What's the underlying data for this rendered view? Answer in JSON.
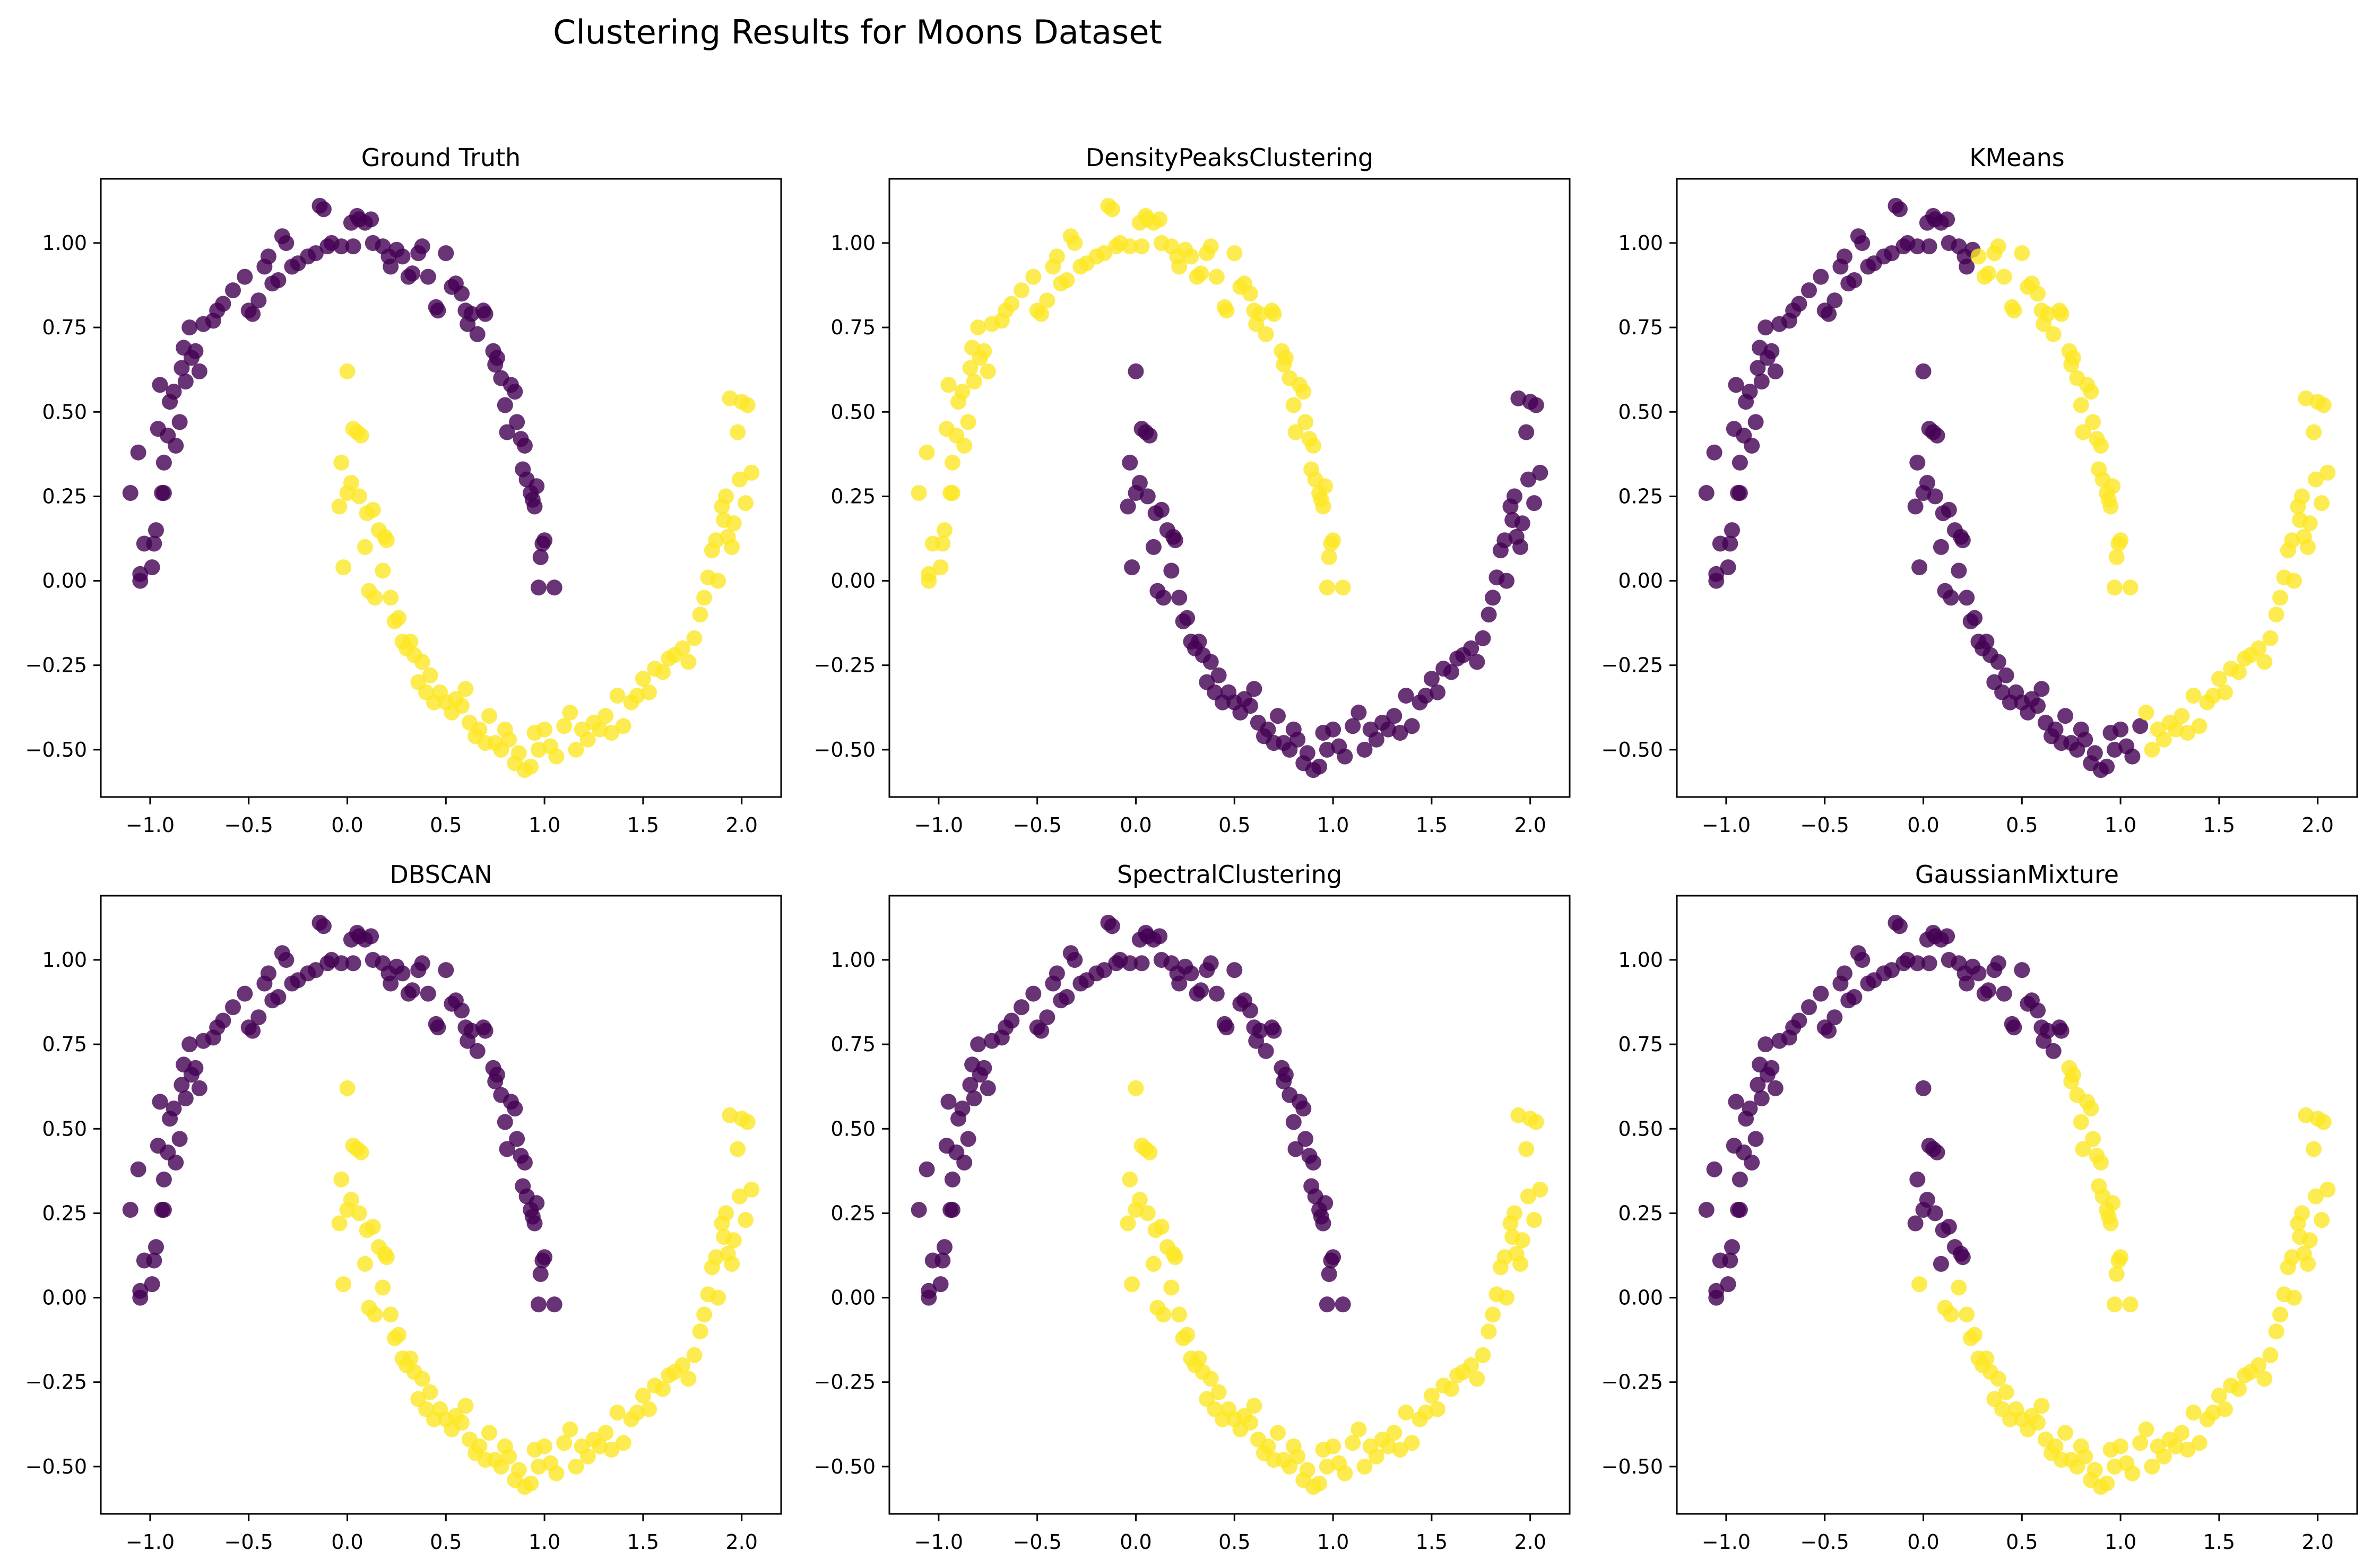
{
  "figure": {
    "suptitle": "Clustering Results for Moons Dataset"
  },
  "style": {
    "cluster_colors": {
      "0": "#440154",
      "1": "#fde725"
    },
    "point_alpha": 0.8,
    "axes_color": "#000000",
    "background": "#ffffff"
  },
  "chart_data": [
    {
      "type": "scatter",
      "title": "Ground Truth",
      "xlim": [
        -1.25,
        2.2
      ],
      "ylim": [
        -0.64,
        1.19
      ],
      "xticks": [
        -1.0,
        -0.5,
        0.0,
        0.5,
        1.0,
        1.5,
        2.0
      ],
      "xtick_labels": [
        "−1.0",
        "−0.5",
        "0.0",
        "0.5",
        "1.0",
        "1.5",
        "2.0"
      ],
      "yticks": [
        -0.5,
        -0.25,
        0.0,
        0.25,
        0.5,
        0.75,
        1.0
      ],
      "ytick_labels": [
        "−0.50",
        "−0.25",
        "0.00",
        "0.25",
        "0.50",
        "0.75",
        "1.00"
      ],
      "grid": false,
      "rule": "true_moon"
    },
    {
      "type": "scatter",
      "title": "DensityPeaksClustering",
      "xlim": [
        -1.25,
        2.2
      ],
      "ylim": [
        -0.64,
        1.19
      ],
      "xticks": [
        -1.0,
        -0.5,
        0.0,
        0.5,
        1.0,
        1.5,
        2.0
      ],
      "xtick_labels": [
        "−1.0",
        "−0.5",
        "0.0",
        "0.5",
        "1.0",
        "1.5",
        "2.0"
      ],
      "yticks": [
        -0.5,
        -0.25,
        0.0,
        0.25,
        0.5,
        0.75,
        1.0
      ],
      "ytick_labels": [
        "−0.50",
        "−0.25",
        "0.00",
        "0.25",
        "0.50",
        "0.75",
        "1.00"
      ],
      "grid": false,
      "rule": "inverted_moon"
    },
    {
      "type": "scatter",
      "title": "KMeans",
      "xlim": [
        -1.25,
        2.2
      ],
      "ylim": [
        -0.64,
        1.19
      ],
      "xticks": [
        -1.0,
        -0.5,
        0.0,
        0.5,
        1.0,
        1.5,
        2.0
      ],
      "xtick_labels": [
        "−1.0",
        "−0.5",
        "0.0",
        "0.5",
        "1.0",
        "1.5",
        "2.0"
      ],
      "yticks": [
        -0.5,
        -0.25,
        0.0,
        0.25,
        0.5,
        0.75,
        1.0
      ],
      "ytick_labels": [
        "−0.50",
        "−0.25",
        "0.00",
        "0.25",
        "0.50",
        "0.75",
        "1.00"
      ],
      "grid": false,
      "rule": "kmeans_split"
    },
    {
      "type": "scatter",
      "title": "DBSCAN",
      "xlim": [
        -1.25,
        2.2
      ],
      "ylim": [
        -0.64,
        1.19
      ],
      "xticks": [
        -1.0,
        -0.5,
        0.0,
        0.5,
        1.0,
        1.5,
        2.0
      ],
      "xtick_labels": [
        "−1.0",
        "−0.5",
        "0.0",
        "0.5",
        "1.0",
        "1.5",
        "2.0"
      ],
      "yticks": [
        -0.5,
        -0.25,
        0.0,
        0.25,
        0.5,
        0.75,
        1.0
      ],
      "ytick_labels": [
        "−0.50",
        "−0.25",
        "0.00",
        "0.25",
        "0.50",
        "0.75",
        "1.00"
      ],
      "grid": false,
      "rule": "true_moon"
    },
    {
      "type": "scatter",
      "title": "SpectralClustering",
      "xlim": [
        -1.25,
        2.2
      ],
      "ylim": [
        -0.64,
        1.19
      ],
      "xticks": [
        -1.0,
        -0.5,
        0.0,
        0.5,
        1.0,
        1.5,
        2.0
      ],
      "xtick_labels": [
        "−1.0",
        "−0.5",
        "0.0",
        "0.5",
        "1.0",
        "1.5",
        "2.0"
      ],
      "yticks": [
        -0.5,
        -0.25,
        0.0,
        0.25,
        0.5,
        0.75,
        1.0
      ],
      "ytick_labels": [
        "−0.50",
        "−0.25",
        "0.00",
        "0.25",
        "0.50",
        "0.75",
        "1.00"
      ],
      "grid": false,
      "rule": "true_moon"
    },
    {
      "type": "scatter",
      "title": "GaussianMixture",
      "xlim": [
        -1.25,
        2.2
      ],
      "ylim": [
        -0.64,
        1.19
      ],
      "xticks": [
        -1.0,
        -0.5,
        0.0,
        0.5,
        1.0,
        1.5,
        2.0
      ],
      "xtick_labels": [
        "−1.0",
        "−0.5",
        "0.0",
        "0.5",
        "1.0",
        "1.5",
        "2.0"
      ],
      "yticks": [
        -0.5,
        -0.25,
        0.0,
        0.25,
        0.5,
        0.75,
        1.0
      ],
      "ytick_labels": [
        "−0.50",
        "−0.25",
        "0.00",
        "0.25",
        "0.50",
        "0.75",
        "1.00"
      ],
      "grid": false,
      "rule": "gmm_split"
    }
  ],
  "points": {
    "upper_moon": [
      [
        -1.1,
        0.26
      ],
      [
        -1.06,
        0.38
      ],
      [
        -1.05,
        0.0
      ],
      [
        -1.05,
        0.02
      ],
      [
        -1.03,
        0.11
      ],
      [
        -0.99,
        0.04
      ],
      [
        -0.98,
        0.11
      ],
      [
        -0.97,
        0.15
      ],
      [
        -0.96,
        0.45
      ],
      [
        -0.95,
        0.58
      ],
      [
        -0.94,
        0.26
      ],
      [
        -0.93,
        0.26
      ],
      [
        -0.93,
        0.35
      ],
      [
        -0.91,
        0.43
      ],
      [
        -0.9,
        0.53
      ],
      [
        -0.88,
        0.56
      ],
      [
        -0.87,
        0.4
      ],
      [
        -0.85,
        0.47
      ],
      [
        -0.84,
        0.63
      ],
      [
        -0.83,
        0.69
      ],
      [
        -0.82,
        0.59
      ],
      [
        -0.8,
        0.75
      ],
      [
        -0.79,
        0.66
      ],
      [
        -0.77,
        0.68
      ],
      [
        -0.75,
        0.62
      ],
      [
        -0.73,
        0.76
      ],
      [
        -0.68,
        0.77
      ],
      [
        -0.66,
        0.8
      ],
      [
        -0.63,
        0.82
      ],
      [
        -0.58,
        0.86
      ],
      [
        -0.52,
        0.9
      ],
      [
        -0.5,
        0.8
      ],
      [
        -0.48,
        0.79
      ],
      [
        -0.45,
        0.83
      ],
      [
        -0.42,
        0.93
      ],
      [
        -0.4,
        0.96
      ],
      [
        -0.38,
        0.88
      ],
      [
        -0.35,
        0.89
      ],
      [
        -0.33,
        1.02
      ],
      [
        -0.31,
        1.0
      ],
      [
        -0.28,
        0.93
      ],
      [
        -0.25,
        0.94
      ],
      [
        -0.2,
        0.96
      ],
      [
        -0.16,
        0.97
      ],
      [
        -0.14,
        1.11
      ],
      [
        -0.12,
        1.1
      ],
      [
        -0.1,
        0.99
      ],
      [
        -0.08,
        1.0
      ],
      [
        -0.03,
        0.99
      ],
      [
        0.02,
        1.06
      ],
      [
        0.03,
        0.99
      ],
      [
        0.05,
        1.08
      ],
      [
        0.06,
        1.07
      ],
      [
        0.09,
        1.06
      ],
      [
        0.12,
        1.07
      ],
      [
        0.13,
        1.0
      ],
      [
        0.18,
        0.99
      ],
      [
        0.21,
        0.96
      ],
      [
        0.22,
        0.93
      ],
      [
        0.25,
        0.98
      ],
      [
        0.28,
        0.96
      ],
      [
        0.31,
        0.9
      ],
      [
        0.33,
        0.91
      ],
      [
        0.36,
        0.97
      ],
      [
        0.38,
        0.99
      ],
      [
        0.41,
        0.9
      ],
      [
        0.45,
        0.81
      ],
      [
        0.46,
        0.8
      ],
      [
        0.5,
        0.97
      ],
      [
        0.53,
        0.87
      ],
      [
        0.55,
        0.88
      ],
      [
        0.58,
        0.85
      ],
      [
        0.6,
        0.8
      ],
      [
        0.61,
        0.76
      ],
      [
        0.63,
        0.79
      ],
      [
        0.66,
        0.73
      ],
      [
        0.69,
        0.8
      ],
      [
        0.7,
        0.79
      ],
      [
        0.74,
        0.68
      ],
      [
        0.75,
        0.64
      ],
      [
        0.76,
        0.66
      ],
      [
        0.78,
        0.6
      ],
      [
        0.8,
        0.52
      ],
      [
        0.81,
        0.44
      ],
      [
        0.83,
        0.58
      ],
      [
        0.85,
        0.56
      ],
      [
        0.86,
        0.47
      ],
      [
        0.88,
        0.42
      ],
      [
        0.89,
        0.33
      ],
      [
        0.9,
        0.4
      ],
      [
        0.91,
        0.3
      ],
      [
        0.93,
        0.26
      ],
      [
        0.94,
        0.24
      ],
      [
        0.95,
        0.22
      ],
      [
        0.96,
        0.28
      ],
      [
        0.98,
        0.07
      ],
      [
        0.99,
        0.11
      ],
      [
        1.0,
        0.12
      ],
      [
        0.97,
        -0.02
      ],
      [
        1.05,
        -0.02
      ]
    ],
    "lower_moon": [
      [
        -0.02,
        0.04
      ],
      [
        -0.04,
        0.22
      ],
      [
        -0.03,
        0.35
      ],
      [
        0.0,
        0.62
      ],
      [
        0.0,
        0.26
      ],
      [
        0.02,
        0.29
      ],
      [
        0.03,
        0.45
      ],
      [
        0.05,
        0.44
      ],
      [
        0.06,
        0.25
      ],
      [
        0.07,
        0.43
      ],
      [
        0.09,
        0.1
      ],
      [
        0.1,
        0.2
      ],
      [
        0.11,
        -0.03
      ],
      [
        0.13,
        0.21
      ],
      [
        0.14,
        -0.05
      ],
      [
        0.16,
        0.15
      ],
      [
        0.18,
        0.03
      ],
      [
        0.19,
        0.13
      ],
      [
        0.2,
        0.12
      ],
      [
        0.22,
        -0.05
      ],
      [
        0.24,
        -0.12
      ],
      [
        0.26,
        -0.11
      ],
      [
        0.28,
        -0.18
      ],
      [
        0.3,
        -0.2
      ],
      [
        0.32,
        -0.18
      ],
      [
        0.34,
        -0.22
      ],
      [
        0.36,
        -0.3
      ],
      [
        0.38,
        -0.24
      ],
      [
        0.4,
        -0.33
      ],
      [
        0.42,
        -0.28
      ],
      [
        0.44,
        -0.36
      ],
      [
        0.47,
        -0.33
      ],
      [
        0.5,
        -0.36
      ],
      [
        0.53,
        -0.39
      ],
      [
        0.55,
        -0.35
      ],
      [
        0.58,
        -0.37
      ],
      [
        0.6,
        -0.32
      ],
      [
        0.62,
        -0.42
      ],
      [
        0.65,
        -0.46
      ],
      [
        0.67,
        -0.44
      ],
      [
        0.7,
        -0.48
      ],
      [
        0.72,
        -0.4
      ],
      [
        0.75,
        -0.48
      ],
      [
        0.78,
        -0.5
      ],
      [
        0.8,
        -0.44
      ],
      [
        0.82,
        -0.47
      ],
      [
        0.85,
        -0.54
      ],
      [
        0.87,
        -0.51
      ],
      [
        0.9,
        -0.56
      ],
      [
        0.93,
        -0.55
      ],
      [
        0.95,
        -0.45
      ],
      [
        0.97,
        -0.5
      ],
      [
        1.0,
        -0.44
      ],
      [
        1.03,
        -0.49
      ],
      [
        1.06,
        -0.52
      ],
      [
        1.1,
        -0.43
      ],
      [
        1.13,
        -0.39
      ],
      [
        1.16,
        -0.5
      ],
      [
        1.19,
        -0.44
      ],
      [
        1.22,
        -0.47
      ],
      [
        1.25,
        -0.42
      ],
      [
        1.28,
        -0.44
      ],
      [
        1.31,
        -0.4
      ],
      [
        1.34,
        -0.45
      ],
      [
        1.37,
        -0.34
      ],
      [
        1.4,
        -0.43
      ],
      [
        1.44,
        -0.36
      ],
      [
        1.47,
        -0.34
      ],
      [
        1.5,
        -0.29
      ],
      [
        1.53,
        -0.33
      ],
      [
        1.56,
        -0.26
      ],
      [
        1.6,
        -0.27
      ],
      [
        1.63,
        -0.23
      ],
      [
        1.66,
        -0.22
      ],
      [
        1.7,
        -0.2
      ],
      [
        1.73,
        -0.24
      ],
      [
        1.76,
        -0.17
      ],
      [
        1.79,
        -0.1
      ],
      [
        1.81,
        -0.05
      ],
      [
        1.83,
        0.01
      ],
      [
        1.85,
        0.09
      ],
      [
        1.87,
        0.12
      ],
      [
        1.88,
        0.0
      ],
      [
        1.9,
        0.22
      ],
      [
        1.91,
        0.18
      ],
      [
        1.92,
        0.25
      ],
      [
        1.93,
        0.13
      ],
      [
        1.94,
        0.54
      ],
      [
        1.95,
        0.1
      ],
      [
        1.96,
        0.17
      ],
      [
        1.98,
        0.44
      ],
      [
        1.99,
        0.3
      ],
      [
        2.0,
        0.53
      ],
      [
        2.02,
        0.23
      ],
      [
        2.03,
        0.52
      ],
      [
        2.05,
        0.32
      ]
    ]
  }
}
